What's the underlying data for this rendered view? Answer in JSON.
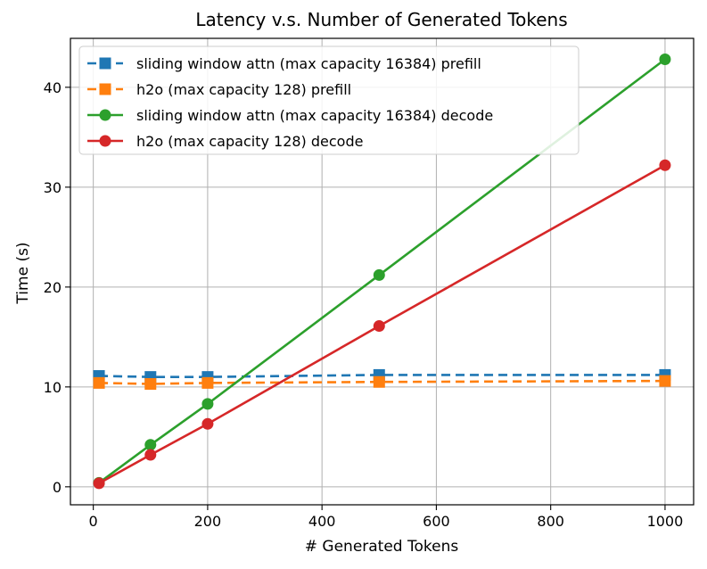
{
  "chart_data": {
    "type": "line",
    "title": "Latency v.s. Number of Generated Tokens",
    "xlabel": "# Generated Tokens",
    "ylabel": "Time (s)",
    "xlim": [
      -40,
      1050
    ],
    "ylim": [
      -1.8,
      44.9
    ],
    "xticks": [
      0,
      200,
      400,
      600,
      800,
      1000
    ],
    "yticks": [
      0,
      10,
      20,
      30,
      40
    ],
    "grid": true,
    "legend_position": "top-left",
    "x": [
      10,
      100,
      200,
      500,
      1000
    ],
    "series": [
      {
        "name": "sliding window attn (max capacity 16384) prefill",
        "values": [
          11.1,
          11.0,
          11.0,
          11.2,
          11.2
        ],
        "color": "#1f77b4",
        "line_style": "dashed",
        "marker": "square"
      },
      {
        "name": "h2o (max capacity 128) prefill",
        "values": [
          10.4,
          10.3,
          10.4,
          10.5,
          10.6
        ],
        "color": "#ff7f0e",
        "line_style": "dashed",
        "marker": "square"
      },
      {
        "name": "sliding window attn (max capacity 16384) decode",
        "values": [
          0.4,
          4.2,
          8.3,
          21.2,
          42.8
        ],
        "color": "#2ca02c",
        "line_style": "solid",
        "marker": "circle"
      },
      {
        "name": "h2o (max capacity 128) decode",
        "values": [
          0.35,
          3.2,
          6.3,
          16.1,
          32.2
        ],
        "color": "#d62728",
        "line_style": "solid",
        "marker": "circle"
      }
    ]
  }
}
